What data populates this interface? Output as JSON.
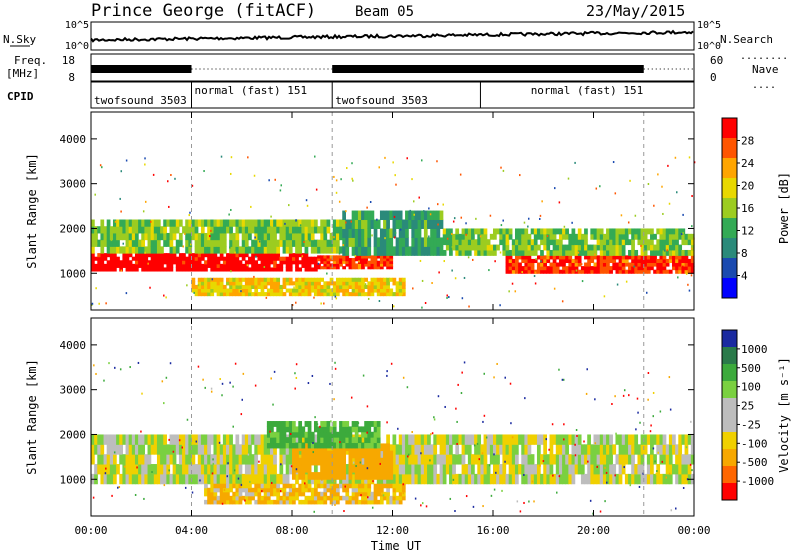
{
  "header": {
    "station": "Prince George (fitACF)",
    "beam": "Beam 05",
    "date": "23/May/2015"
  },
  "top_panels": {
    "nsky_label": "N.Sky",
    "nsky_ticks": [
      "10^5",
      "10^0"
    ],
    "nsearch_label": "N.Search",
    "nsearch_ticks": [
      "10^5",
      "10^0"
    ],
    "freq_label_line1": "Freq.",
    "freq_label_line2": "[MHz]",
    "freq_ticks": [
      "18",
      "8"
    ],
    "nave_label": "Nave",
    "nave_ticks": [
      "60",
      "0"
    ],
    "cpid_label": "CPID",
    "cpid_segments": [
      {
        "label": "twofsound 3503",
        "start": 0,
        "end": 4
      },
      {
        "label": "normal (fast) 151",
        "start": 4,
        "end": 9.6
      },
      {
        "label": "twofsound 3503",
        "start": 9.6,
        "end": 15.5
      },
      {
        "label": "normal (fast) 151",
        "start": 15.5,
        "end": 24
      }
    ]
  },
  "colorbars": {
    "power_title": "Power [dB]",
    "power_ticks": [
      "28",
      "24",
      "20",
      "16",
      "12",
      "8",
      "4"
    ],
    "power_colors": [
      "#ff0000",
      "#ff5500",
      "#ffa500",
      "#e8d800",
      "#9ccc20",
      "#33aa55",
      "#2a8a7a",
      "#1a4ab0",
      "#0000ff"
    ],
    "velocity_title": "Velocity [m s⁻¹]",
    "velocity_ticks": [
      "1000",
      "500",
      "100",
      "25",
      "-25",
      "-100",
      "-500",
      "-1000"
    ],
    "velocity_colors": [
      "#1a2aa0",
      "#2a7a4a",
      "#3caa3c",
      "#7ad040",
      "#bdbdbd",
      "#bdbdbd",
      "#f0d000",
      "#f7a800",
      "#ff6600",
      "#ff0000"
    ]
  },
  "x_axis": {
    "title": "Time UT",
    "ticks": [
      "00:00",
      "04:00",
      "08:00",
      "12:00",
      "16:00",
      "20:00",
      "00:00"
    ]
  },
  "y_axis": {
    "title": "Slant Range [km]",
    "ticks": [
      "4000",
      "3000",
      "2000",
      "1000"
    ]
  },
  "chart_data": [
    {
      "type": "heatmap",
      "title": "Power [dB]",
      "xlabel": "Time UT",
      "ylabel": "Slant Range [km]",
      "xlim": [
        0,
        24
      ],
      "ylim": [
        180,
        4600
      ],
      "zlim": [
        0,
        30
      ],
      "regions": [
        {
          "t0": 0.0,
          "t1": 9.0,
          "r0": 1050,
          "r1": 1450,
          "value": 30
        },
        {
          "t0": 9.0,
          "t1": 12.0,
          "r0": 1100,
          "r1": 1400,
          "value": 26
        },
        {
          "t0": 16.5,
          "t1": 24.0,
          "r0": 1000,
          "r1": 1400,
          "value": 26
        },
        {
          "t0": 0.0,
          "t1": 10.0,
          "r0": 1450,
          "r1": 2200,
          "value": 12
        },
        {
          "t0": 14.0,
          "t1": 24.0,
          "r0": 1400,
          "r1": 2000,
          "value": 12
        },
        {
          "t0": 4.0,
          "t1": 12.5,
          "r0": 500,
          "r1": 900,
          "value": 18
        },
        {
          "t0": 10.0,
          "t1": 14.0,
          "r0": 1400,
          "r1": 2400,
          "value": 8
        }
      ]
    },
    {
      "type": "heatmap",
      "title": "Velocity [m s⁻¹]",
      "xlabel": "Time UT",
      "ylabel": "Slant Range [km]",
      "xlim": [
        0,
        24
      ],
      "ylim": [
        180,
        4600
      ],
      "zlim": [
        -1000,
        1000
      ],
      "regions": [
        {
          "t0": 0.0,
          "t1": 24.0,
          "r0": 900,
          "r1": 2000,
          "value": 0
        },
        {
          "t0": 4.5,
          "t1": 12.5,
          "r0": 450,
          "r1": 900,
          "value": -100
        },
        {
          "t0": 8.0,
          "t1": 12.0,
          "r0": 1000,
          "r1": 1800,
          "value": -300
        },
        {
          "t0": 7.0,
          "t1": 11.5,
          "r0": 1700,
          "r1": 2300,
          "value": 150
        }
      ]
    }
  ]
}
